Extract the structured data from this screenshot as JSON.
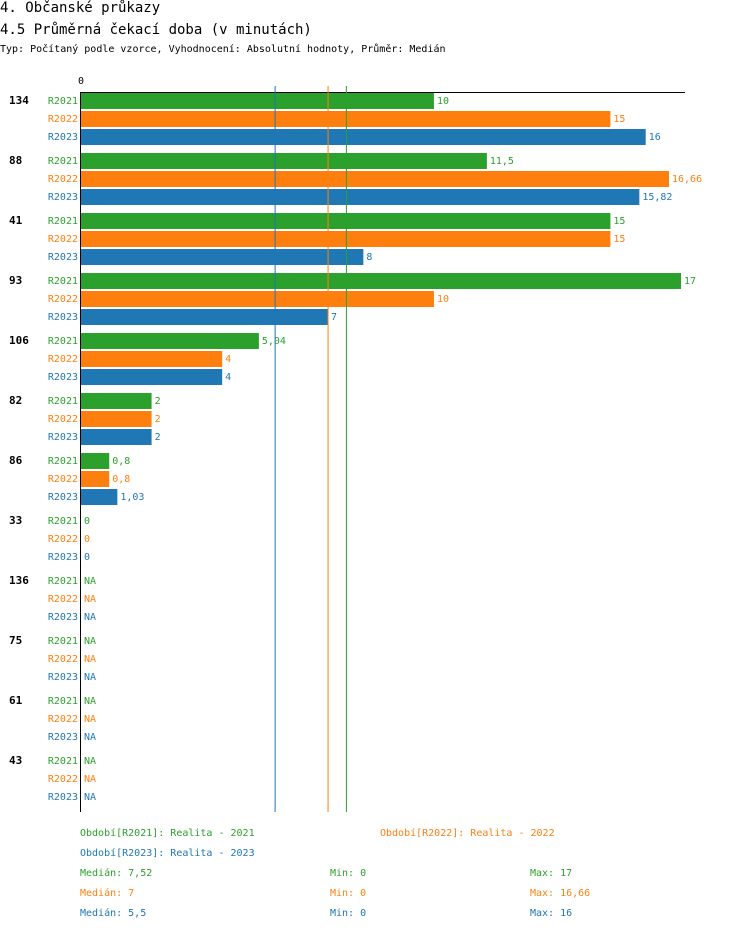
{
  "header": {
    "title": "4. Občanské průkazy",
    "subtitle": "4.5 Průměrná čekací doba (v minutách)",
    "description": "Typ: Počítaný podle vzorce, Vyhodnocení: Absolutní hodnoty, Průměr: Medián"
  },
  "colors": {
    "R2021": "#2ca02c",
    "R2022": "#ff7f0e",
    "R2023": "#1f77b4"
  },
  "chart_data": {
    "type": "bar",
    "orientation": "horizontal",
    "axis_zero_label": "0",
    "xlim": [
      0,
      17
    ],
    "series_names": [
      "R2021",
      "R2022",
      "R2023"
    ],
    "groups": [
      {
        "label": "134",
        "values": [
          10,
          15,
          16
        ],
        "labels": [
          "10",
          "15",
          "16"
        ]
      },
      {
        "label": "88",
        "values": [
          11.5,
          16.66,
          15.82
        ],
        "labels": [
          "11,5",
          "16,66",
          "15,82"
        ]
      },
      {
        "label": "41",
        "values": [
          15,
          15,
          8
        ],
        "labels": [
          "15",
          "15",
          "8"
        ]
      },
      {
        "label": "93",
        "values": [
          17,
          10,
          7
        ],
        "labels": [
          "17",
          "10",
          "7"
        ]
      },
      {
        "label": "106",
        "values": [
          5.04,
          4,
          4
        ],
        "labels": [
          "5,04",
          "4",
          "4"
        ]
      },
      {
        "label": "82",
        "values": [
          2,
          2,
          2
        ],
        "labels": [
          "2",
          "2",
          "2"
        ]
      },
      {
        "label": "86",
        "values": [
          0.8,
          0.8,
          1.03
        ],
        "labels": [
          "0,8",
          "0,8",
          "1,03"
        ]
      },
      {
        "label": "33",
        "values": [
          0,
          0,
          0
        ],
        "labels": [
          "0",
          "0",
          "0"
        ]
      },
      {
        "label": "136",
        "values": [
          null,
          null,
          null
        ],
        "labels": [
          "NA",
          "NA",
          "NA"
        ]
      },
      {
        "label": "75",
        "values": [
          null,
          null,
          null
        ],
        "labels": [
          "NA",
          "NA",
          "NA"
        ]
      },
      {
        "label": "61",
        "values": [
          null,
          null,
          null
        ],
        "labels": [
          "NA",
          "NA",
          "NA"
        ]
      },
      {
        "label": "43",
        "values": [
          null,
          null,
          null
        ],
        "labels": [
          "NA",
          "NA",
          "NA"
        ]
      }
    ],
    "median_lines": [
      {
        "series": "R2021",
        "value": 7.52
      },
      {
        "series": "R2022",
        "value": 7
      },
      {
        "series": "R2023",
        "value": 5.5
      }
    ]
  },
  "legend": {
    "period_r2021": "Období[R2021]: Realita - 2021",
    "period_r2022": "Období[R2022]: Realita - 2022",
    "period_r2023": "Období[R2023]: Realita - 2023",
    "stats": [
      {
        "median": "Medián: 7,52",
        "min": "Min: 0",
        "max": "Max: 17"
      },
      {
        "median": "Medián: 7",
        "min": "Min: 0",
        "max": "Max: 16,66"
      },
      {
        "median": "Medián: 5,5",
        "min": "Min: 0",
        "max": "Max: 16"
      }
    ]
  }
}
